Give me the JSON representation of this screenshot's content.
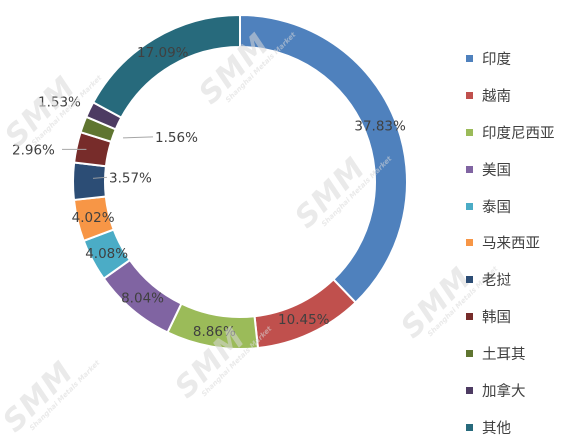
{
  "chart_data": {
    "type": "pie",
    "variant": "donut",
    "title": "",
    "legend_position": "right",
    "watermark": {
      "text": "SMM",
      "subtext": "Shanghai Metals Market"
    },
    "series": [
      {
        "values": [
          37.83,
          10.45,
          8.86,
          8.04,
          4.08,
          4.02,
          3.57,
          2.96,
          1.56,
          1.53,
          17.09
        ],
        "labels": [
          "37.83%",
          "10.45%",
          "8.86%",
          "8.04%",
          "4.08%",
          "4.02%",
          "3.57%",
          "2.96%",
          "1.56%",
          "1.53%",
          "17.09%"
        ]
      }
    ],
    "categories": [
      "印度",
      "越南",
      "印度尼西亚",
      "美国",
      "泰国",
      "马来西亚",
      "老挝",
      "韩国",
      "土耳其",
      "加拿大",
      "其他"
    ],
    "colors": [
      "#4F81BD",
      "#C0504D",
      "#9BBB59",
      "#8064A2",
      "#4BACC6",
      "#F79646",
      "#2C4D75",
      "#772C2A",
      "#5F7530",
      "#4D3B62",
      "#276A7C"
    ]
  }
}
